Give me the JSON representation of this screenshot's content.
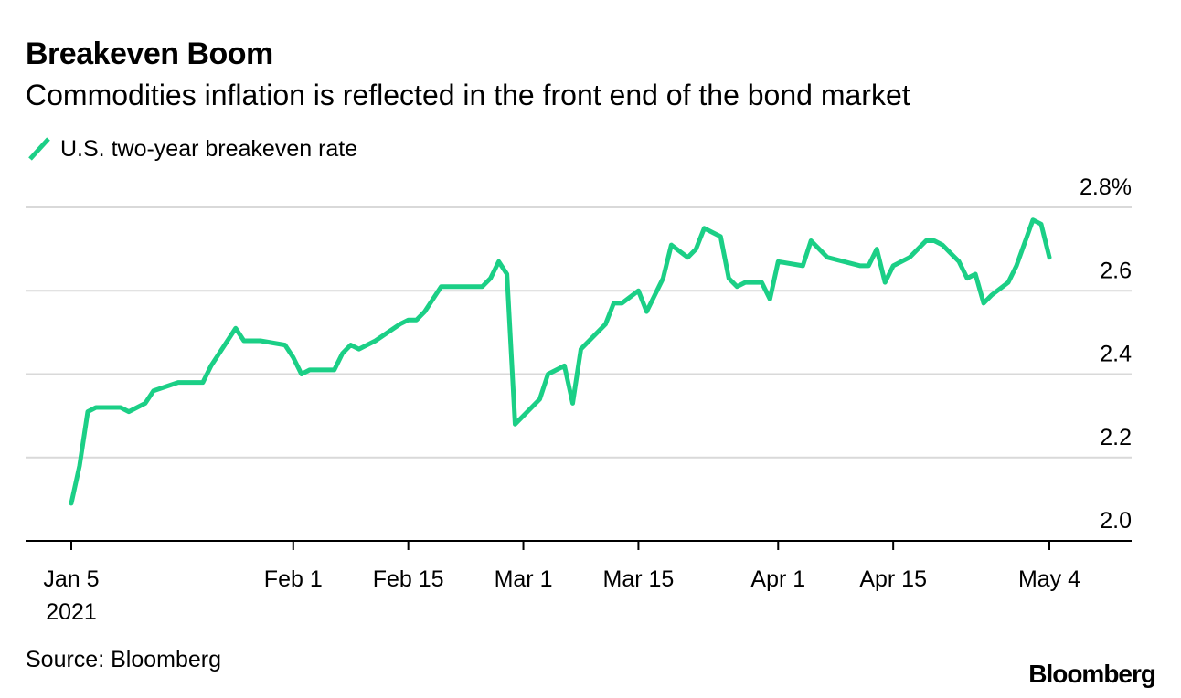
{
  "header": {
    "title": "Breakeven Boom",
    "subtitle": "Commodities inflation is reflected in the front end of the bond market"
  },
  "footer": {
    "source": "Source: Bloomberg",
    "brand": "Bloomberg"
  },
  "colors": {
    "series": "#1bcf86",
    "gridline": "#d9d9d9",
    "axis": "#000000"
  },
  "chart_data": {
    "type": "line",
    "title": "Breakeven Boom",
    "subtitle": "Commodities inflation is reflected in the front end of the bond market",
    "xlabel": "",
    "ylabel": "",
    "ylim": [
      2.0,
      2.8
    ],
    "yticks": [
      2.0,
      2.2,
      2.4,
      2.6,
      2.8
    ],
    "ytick_labels": [
      "2.0",
      "2.2",
      "2.4",
      "2.6",
      "2.8%"
    ],
    "grid": true,
    "legend_position": "top-left",
    "x_domain_days": [
      0,
      119
    ],
    "xticks": [
      {
        "day": 0,
        "label": "Jan 5",
        "sublabel": "2021"
      },
      {
        "day": 27,
        "label": "Feb 1"
      },
      {
        "day": 41,
        "label": "Feb 15"
      },
      {
        "day": 55,
        "label": "Mar 1"
      },
      {
        "day": 69,
        "label": "Mar 15"
      },
      {
        "day": 86,
        "label": "Apr 1"
      },
      {
        "day": 100,
        "label": "Apr 15"
      },
      {
        "day": 119,
        "label": "May 4"
      }
    ],
    "series": [
      {
        "name": "U.S. two-year breakeven rate",
        "x_days": [
          0,
          1,
          2,
          3,
          6,
          7,
          8,
          9,
          10,
          13,
          15,
          16,
          17,
          20,
          21,
          23,
          26,
          27,
          28,
          29,
          30,
          31,
          32,
          33,
          34,
          35,
          37,
          40,
          41,
          42,
          43,
          45,
          46,
          49,
          50,
          51,
          52,
          53,
          54,
          55,
          56,
          57,
          58,
          60,
          61,
          62,
          63,
          64,
          65,
          66,
          67,
          69,
          70,
          72,
          73,
          75,
          76,
          77,
          79,
          80,
          81,
          82,
          84,
          85,
          86,
          89,
          90,
          92,
          96,
          97,
          98,
          99,
          100,
          102,
          104,
          105,
          106,
          107,
          108,
          109,
          110,
          111,
          112,
          114,
          115,
          117,
          118,
          119
        ],
        "values": [
          2.09,
          2.18,
          2.31,
          2.32,
          2.32,
          2.31,
          2.32,
          2.33,
          2.36,
          2.38,
          2.38,
          2.38,
          2.42,
          2.51,
          2.48,
          2.48,
          2.47,
          2.44,
          2.4,
          2.41,
          2.41,
          2.41,
          2.41,
          2.45,
          2.47,
          2.46,
          2.48,
          2.52,
          2.53,
          2.53,
          2.55,
          2.61,
          2.61,
          2.61,
          2.61,
          2.63,
          2.67,
          2.64,
          2.28,
          2.3,
          2.32,
          2.34,
          2.4,
          2.42,
          2.33,
          2.46,
          2.48,
          2.5,
          2.52,
          2.57,
          2.57,
          2.6,
          2.55,
          2.63,
          2.71,
          2.68,
          2.7,
          2.75,
          2.73,
          2.63,
          2.61,
          2.62,
          2.62,
          2.58,
          2.67,
          2.66,
          2.72,
          2.68,
          2.66,
          2.66,
          2.7,
          2.62,
          2.66,
          2.68,
          2.72,
          2.72,
          2.71,
          2.69,
          2.67,
          2.63,
          2.64,
          2.57,
          2.59,
          2.62,
          2.66,
          2.77,
          2.76,
          2.68
        ]
      }
    ]
  }
}
